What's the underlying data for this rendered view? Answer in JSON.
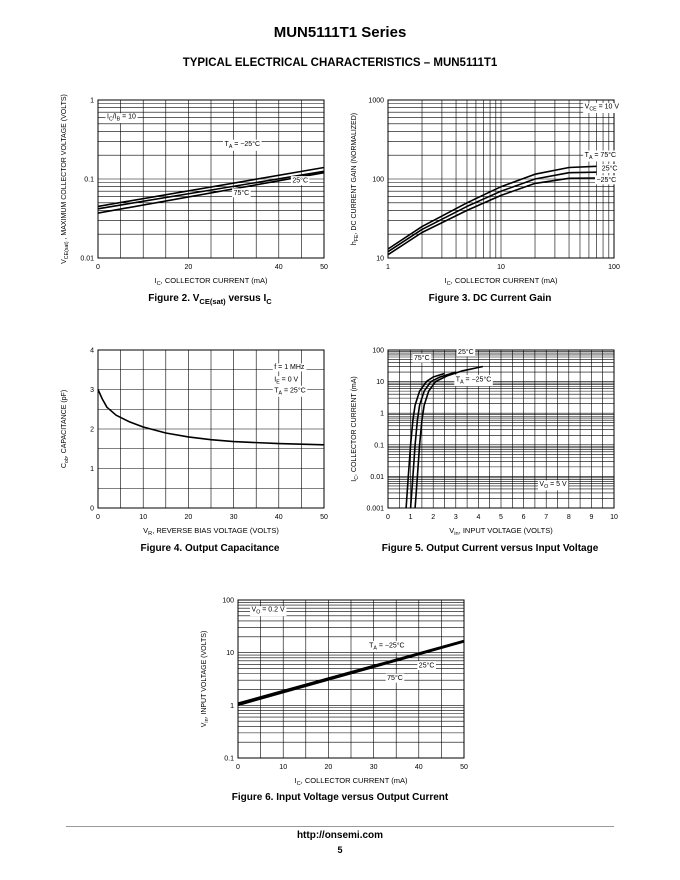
{
  "header": {
    "title": "MUN5111T1 Series",
    "subtitle": "TYPICAL ELECTRICAL CHARACTERISTICS – MUN5111T1"
  },
  "footer": {
    "url": "http://onsemi.com",
    "page": "5"
  },
  "chart_data": [
    {
      "id": "fig2",
      "type": "line",
      "caption": {
        "pre": "Figure 2. V",
        "sub": "CE(sat)",
        "mid": " versus I",
        "sub2": "C"
      },
      "xlabel": "I<sub>C</sub>, COLLECTOR CURRENT (mA)",
      "ylabel": "V<sub>CE(sat)</sub> , MAXIMUM COLLECTOR VOLTAGE (VOLTS)",
      "xscale": "linear",
      "xlim": [
        0,
        50
      ],
      "xticks": [
        0,
        20,
        40,
        50
      ],
      "xtick_labels": [
        "0",
        "20",
        "40",
        "50"
      ],
      "xgrid": [
        0,
        5,
        10,
        15,
        20,
        25,
        30,
        35,
        40,
        45,
        50
      ],
      "yscale": "log",
      "ylim": [
        0.01,
        1
      ],
      "yticks": [
        0.01,
        0.1,
        1
      ],
      "ytick_labels": [
        "0.01",
        "0.1",
        "1"
      ],
      "series": [
        {
          "name": "-25°C",
          "x": [
            0,
            50
          ],
          "y": [
            0.045,
            0.14
          ]
        },
        {
          "name": "25°C",
          "x": [
            0,
            50
          ],
          "y": [
            0.042,
            0.125
          ]
        },
        {
          "name": "75°C",
          "x": [
            0,
            50
          ],
          "y": [
            0.037,
            0.12
          ]
        }
      ],
      "annotations": [
        {
          "text": "I<sub>C</sub>/I<sub>B</sub> = 10",
          "x": 2,
          "y": 0.58,
          "anchor": "start"
        },
        {
          "text": "T<sub>A</sub> = −25°C",
          "x": 28,
          "y": 0.26,
          "anchor": "start"
        },
        {
          "text": "25°C",
          "x": 43,
          "y": 0.09,
          "anchor": "start"
        },
        {
          "text": "75°C",
          "x": 30,
          "y": 0.063,
          "anchor": "start"
        }
      ]
    },
    {
      "id": "fig3",
      "type": "line",
      "caption": {
        "pre": "Figure 3. DC Current Gain"
      },
      "xlabel": "I<sub>C</sub>, COLLECTOR CURRENT (mA)",
      "ylabel": "h<sub>FE</sub>, DC CURRENT GAIN (NORMALIZED)",
      "xscale": "log",
      "xlim": [
        1,
        100
      ],
      "xticks": [
        1,
        10,
        100
      ],
      "xtick_labels": [
        "1",
        "10",
        "100"
      ],
      "yscale": "log",
      "ylim": [
        10,
        1000
      ],
      "yticks": [
        10,
        100,
        1000
      ],
      "ytick_labels": [
        "10",
        "100",
        "1000"
      ],
      "series": [
        {
          "name": "75°C",
          "x": [
            1,
            2,
            5,
            10,
            20,
            40,
            70
          ],
          "y": [
            13,
            25,
            50,
            80,
            115,
            140,
            145
          ]
        },
        {
          "name": "25°C",
          "x": [
            1,
            2,
            5,
            10,
            20,
            40,
            70
          ],
          "y": [
            12,
            23,
            45,
            70,
            100,
            120,
            122
          ]
        },
        {
          "name": "-25°C",
          "x": [
            1,
            2,
            5,
            10,
            20,
            40,
            70
          ],
          "y": [
            11,
            21,
            40,
            62,
            88,
            102,
            103
          ]
        }
      ],
      "annotations": [
        {
          "text": "V<sub>CE</sub> = 10 V",
          "x": 55,
          "y": 780,
          "anchor": "start"
        },
        {
          "text": "T<sub>A</sub> = 75°C",
          "x": 55,
          "y": 190,
          "anchor": "start"
        },
        {
          "text": "25°C",
          "x": 78,
          "y": 128,
          "anchor": "start"
        },
        {
          "text": "−25°C",
          "x": 70,
          "y": 92,
          "anchor": "start"
        }
      ]
    },
    {
      "id": "fig4",
      "type": "line",
      "caption": {
        "pre": "Figure 4. Output Capacitance"
      },
      "xlabel": "V<sub>R</sub>, REVERSE BIAS VOLTAGE (VOLTS)",
      "ylabel": "C<sub>ob</sub>, CAPACITANCE (pF)",
      "xscale": "linear",
      "xlim": [
        0,
        50
      ],
      "xticks": [
        0,
        10,
        20,
        30,
        40,
        50
      ],
      "xtick_labels": [
        "0",
        "10",
        "20",
        "30",
        "40",
        "50"
      ],
      "xgrid": [
        0,
        5,
        10,
        15,
        20,
        25,
        30,
        35,
        40,
        45,
        50
      ],
      "yscale": "linear",
      "ylim": [
        0,
        4
      ],
      "yticks": [
        0,
        1,
        2,
        3,
        4
      ],
      "ytick_labels": [
        "0",
        "1",
        "2",
        "3",
        "4"
      ],
      "ygrid": [
        0,
        0.5,
        1,
        1.5,
        2,
        2.5,
        3,
        3.5,
        4
      ],
      "series": [
        {
          "name": "Cob",
          "x": [
            0,
            1,
            2,
            4,
            7,
            10,
            15,
            20,
            25,
            30,
            40,
            50
          ],
          "y": [
            3.0,
            2.75,
            2.55,
            2.35,
            2.18,
            2.05,
            1.9,
            1.8,
            1.73,
            1.68,
            1.63,
            1.6
          ]
        }
      ],
      "annotations": [
        {
          "text": "f = 1 MHz",
          "x": 39,
          "y": 3.52,
          "anchor": "start"
        },
        {
          "text": "I<sub>E</sub> = 0 V",
          "x": 39,
          "y": 3.2,
          "anchor": "start"
        },
        {
          "text": "T<sub>A</sub> = 25°C",
          "x": 39,
          "y": 2.93,
          "anchor": "start"
        }
      ]
    },
    {
      "id": "fig5",
      "type": "line",
      "caption": {
        "pre": "Figure 5. Output Current versus Input Voltage"
      },
      "xlabel": "V<sub>in</sub>, INPUT VOLTAGE (VOLTS)",
      "ylabel": "I<sub>C</sub>, COLLECTOR CURRENT (mA)",
      "xscale": "linear",
      "xlim": [
        0,
        10
      ],
      "xticks": [
        0,
        1,
        2,
        3,
        4,
        5,
        6,
        7,
        8,
        9,
        10
      ],
      "xtick_labels": [
        "0",
        "1",
        "2",
        "3",
        "4",
        "5",
        "6",
        "7",
        "8",
        "9",
        "10"
      ],
      "xgrid": [
        0,
        0.5,
        1,
        1.5,
        2,
        2.5,
        3,
        3.5,
        4,
        4.5,
        5,
        5.5,
        6,
        6.5,
        7,
        7.5,
        8,
        8.5,
        9,
        9.5,
        10
      ],
      "yscale": "log",
      "ylim": [
        0.001,
        100
      ],
      "yticks": [
        0.001,
        0.01,
        0.1,
        1,
        10,
        100
      ],
      "ytick_labels": [
        "0.001",
        "0.01",
        "0.1",
        "1",
        "10",
        "100"
      ],
      "series": [
        {
          "name": "75°C",
          "x": [
            0.8,
            0.9,
            1.0,
            1.1,
            1.2,
            1.4,
            1.7,
            2.0,
            2.5
          ],
          "y": [
            0.001,
            0.01,
            0.1,
            0.6,
            1.8,
            5,
            10,
            14,
            18
          ]
        },
        {
          "name": "25°C",
          "x": [
            1.0,
            1.1,
            1.2,
            1.3,
            1.4,
            1.6,
            1.9,
            2.3,
            3.0
          ],
          "y": [
            0.001,
            0.01,
            0.1,
            0.6,
            1.8,
            5,
            10,
            14,
            20
          ]
        },
        {
          "name": "-25°C",
          "x": [
            1.2,
            1.3,
            1.4,
            1.5,
            1.6,
            1.8,
            2.1,
            2.6,
            3.3,
            4.2
          ],
          "y": [
            0.001,
            0.01,
            0.1,
            0.6,
            1.8,
            5,
            10,
            15,
            22,
            30
          ]
        }
      ],
      "annotations": [
        {
          "text": "75°C",
          "x": 1.15,
          "y": 48,
          "anchor": "start"
        },
        {
          "text": "25°C",
          "x": 3.1,
          "y": 75,
          "anchor": "start"
        },
        {
          "text": "T<sub>A</sub> = −25°C",
          "x": 3.0,
          "y": 10,
          "anchor": "start"
        },
        {
          "text": "V<sub>O</sub> = 5 V",
          "x": 6.7,
          "y": 0.005,
          "anchor": "start"
        }
      ]
    },
    {
      "id": "fig6",
      "type": "line",
      "caption": {
        "pre": "Figure 6. Input Voltage versus Output Current"
      },
      "xlabel": "I<sub>C</sub>, COLLECTOR CURRENT (mA)",
      "ylabel": "V<sub>in</sub>, INPUT VOLTAGE (VOLTS)",
      "xscale": "linear",
      "xlim": [
        0,
        50
      ],
      "xticks": [
        0,
        10,
        20,
        30,
        40,
        50
      ],
      "xtick_labels": [
        "0",
        "10",
        "20",
        "30",
        "40",
        "50"
      ],
      "xgrid": [
        0,
        5,
        10,
        15,
        20,
        25,
        30,
        35,
        40,
        45,
        50
      ],
      "yscale": "log",
      "ylim": [
        0.1,
        100
      ],
      "yticks": [
        0.1,
        1,
        10,
        100
      ],
      "ytick_labels": [
        "0.1",
        "1",
        "10",
        "100"
      ],
      "series": [
        {
          "name": "-25°C",
          "x": [
            0,
            50
          ],
          "y": [
            1.1,
            17
          ]
        },
        {
          "name": "25°C",
          "x": [
            0,
            50
          ],
          "y": [
            1.05,
            16.5
          ]
        },
        {
          "name": "75°C",
          "x": [
            0,
            50
          ],
          "y": [
            1.0,
            16
          ]
        }
      ],
      "annotations": [
        {
          "text": "V<sub>O</sub> = 0.2 V",
          "x": 3,
          "y": 60,
          "anchor": "start"
        },
        {
          "text": "T<sub>A</sub> = −25°C",
          "x": 29,
          "y": 12.5,
          "anchor": "start"
        },
        {
          "text": "25°C",
          "x": 40,
          "y": 5.2,
          "anchor": "start"
        },
        {
          "text": "75°C",
          "x": 33,
          "y": 3.0,
          "anchor": "start"
        }
      ]
    }
  ]
}
